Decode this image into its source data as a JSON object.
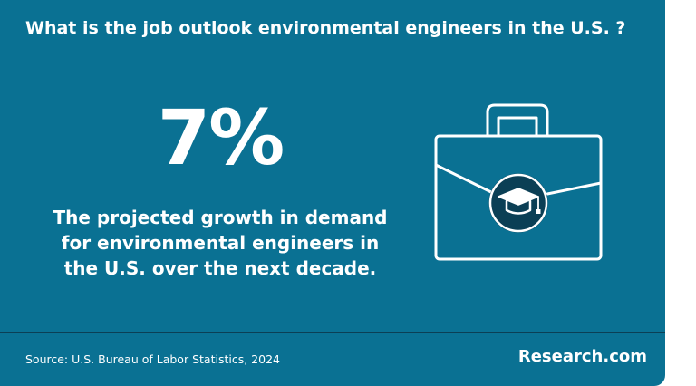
{
  "header": {
    "title": "What is the job outlook environmental engineers in the U.S. ?"
  },
  "main": {
    "stat": "7%",
    "description": "The projected growth in demand for environmental engineers in the U.S. over the next decade.",
    "icon": "briefcase-graduation-cap-icon"
  },
  "footer": {
    "source": "Source: U.S. Bureau of Labor Statistics, 2024",
    "brand": "Research.com"
  },
  "colors": {
    "background": "#0a7193",
    "text": "#ffffff",
    "rule": "#0b3f55",
    "icon_circle": "#0b3f55"
  }
}
